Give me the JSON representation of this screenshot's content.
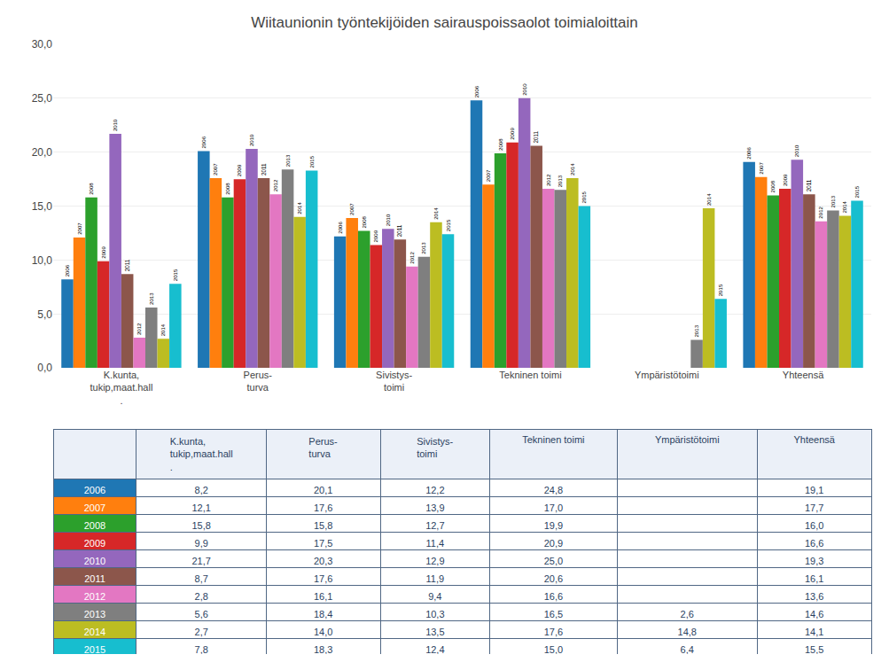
{
  "chart_data": {
    "type": "bar",
    "title": "Wiitaunionin työntekijöiden sairauspoissaolot toimialoittain",
    "categories": [
      "K.kunta,\ntukip,maat.hall\n.",
      "Perus-\nturva",
      "Sivistys-\ntoimi",
      "Tekninen toimi",
      "Ympäristötoimi",
      "Yhteensä"
    ],
    "series": [
      {
        "name": "2006",
        "values": [
          8.2,
          20.1,
          12.2,
          24.8,
          null,
          19.1
        ],
        "value_labels": [
          "8,2",
          "20,1",
          "12,2",
          "24,8",
          null,
          "19,1"
        ]
      },
      {
        "name": "2007",
        "values": [
          12.1,
          17.6,
          13.9,
          17.0,
          null,
          17.7
        ],
        "value_labels": [
          "12,1",
          "17,6",
          "13,9",
          "17,0",
          null,
          "17,7"
        ]
      },
      {
        "name": "2008",
        "values": [
          15.8,
          15.8,
          12.7,
          19.9,
          null,
          16.0
        ],
        "value_labels": [
          "15,8",
          "15,8",
          "12,7",
          "19,9",
          null,
          "16,0"
        ]
      },
      {
        "name": "2009",
        "values": [
          9.9,
          17.5,
          11.4,
          20.9,
          null,
          16.6
        ],
        "value_labels": [
          "9,9",
          "17,5",
          "11,4",
          "20,9",
          null,
          "16,6"
        ]
      },
      {
        "name": "2010",
        "values": [
          21.7,
          20.3,
          12.9,
          25.0,
          null,
          19.3
        ],
        "value_labels": [
          "21,7",
          "20,3",
          "12,9",
          "25,0",
          null,
          "19,3"
        ]
      },
      {
        "name": "2011",
        "values": [
          8.7,
          17.6,
          11.9,
          20.6,
          null,
          16.1
        ],
        "value_labels": [
          "8,7",
          "17,6",
          "11,9",
          "20,6",
          null,
          "16,1"
        ]
      },
      {
        "name": "2012",
        "values": [
          2.8,
          16.1,
          9.4,
          16.6,
          null,
          13.6
        ],
        "value_labels": [
          "2,8",
          "16,1",
          "9,4",
          "16,6",
          null,
          "13,6"
        ]
      },
      {
        "name": "2013",
        "values": [
          5.6,
          18.4,
          10.3,
          16.5,
          2.6,
          14.6
        ],
        "value_labels": [
          "5,6",
          "18,4",
          "10,3",
          "16,5",
          "2,6",
          "14,6"
        ]
      },
      {
        "name": "2014",
        "values": [
          2.7,
          14.0,
          13.5,
          17.6,
          14.8,
          14.1
        ],
        "value_labels": [
          "2,7",
          "14,0",
          "13,5",
          "17,6",
          "14,8",
          "14,1"
        ]
      },
      {
        "name": "2015",
        "values": [
          7.8,
          18.3,
          12.4,
          15.0,
          6.4,
          15.5
        ],
        "value_labels": [
          "7,8",
          "18,3",
          "12,4",
          "15,0",
          "6,4",
          "15,5"
        ]
      }
    ],
    "ylim": [
      0,
      30
    ],
    "yticks": [
      {
        "value": 0,
        "label": "0,0"
      },
      {
        "value": 5,
        "label": "5,0"
      },
      {
        "value": 10,
        "label": "10,0"
      },
      {
        "value": 15,
        "label": "15,0"
      },
      {
        "value": 20,
        "label": "20,0"
      },
      {
        "value": 25,
        "label": "25,0"
      },
      {
        "value": 30,
        "label": "30,0"
      }
    ],
    "grid": true
  }
}
